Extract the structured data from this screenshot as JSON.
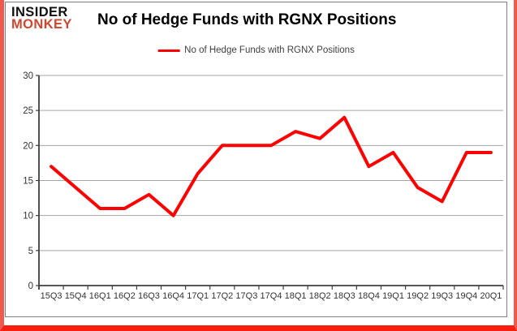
{
  "brand": {
    "line1": "INSIDER",
    "line2": "MONKEY"
  },
  "header": {
    "title": "No of Hedge Funds with RGNX Positions"
  },
  "legend": {
    "label": "No of Hedge Funds with RGNX Positions"
  },
  "chart_data": {
    "type": "line",
    "title": "No of Hedge Funds with RGNX Positions",
    "categories": [
      "15Q3",
      "15Q4",
      "16Q1",
      "16Q2",
      "16Q3",
      "16Q4",
      "17Q1",
      "17Q2",
      "17Q3",
      "17Q4",
      "18Q1",
      "18Q2",
      "18Q3",
      "18Q4",
      "19Q1",
      "19Q2",
      "19Q3",
      "19Q4",
      "20Q1"
    ],
    "series": [
      {
        "name": "No of Hedge Funds with RGNX Positions",
        "color": "#ff0000",
        "values": [
          17,
          14,
          11,
          11,
          13,
          10,
          16,
          20,
          20,
          20,
          22,
          21,
          24,
          17,
          19,
          14,
          12,
          19,
          19
        ]
      }
    ],
    "xlabel": "",
    "ylabel": "",
    "ylim": [
      0,
      30
    ],
    "yticks": [
      0,
      5,
      10,
      15,
      20,
      25,
      30
    ],
    "grid": true,
    "legend_position": "top-center"
  },
  "colors": {
    "accent_line": "#ff0000",
    "logo_black": "#111111",
    "logo_red": "#cf4631",
    "outer_border_red": "#f2594e",
    "outer_border_red_bottom": "#f81f0e",
    "chart_border_gray": "#808080",
    "grid_gray": "#a6a6a6",
    "axis_gray": "#3f3f3f",
    "tick_label_gray": "#333333"
  }
}
